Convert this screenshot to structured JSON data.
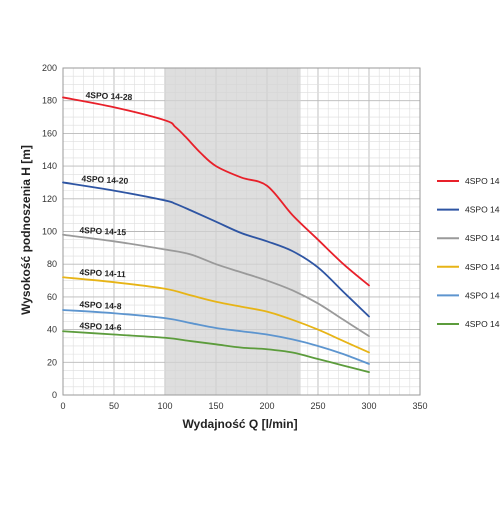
{
  "chart_data": {
    "type": "line",
    "title": "",
    "xlabel": "Wydajność Q [l/min]",
    "ylabel": "Wysokość podnoszenia H [m]",
    "xlim": [
      0,
      350
    ],
    "ylim": [
      0,
      200
    ],
    "xticks": [
      0,
      50,
      100,
      150,
      200,
      250,
      300,
      350
    ],
    "yticks": [
      0,
      20,
      40,
      60,
      80,
      100,
      120,
      140,
      160,
      180,
      200
    ],
    "grid": true,
    "legend_position": "right",
    "shaded_region": {
      "x_from": 100,
      "x_to": 233,
      "color": "#d3d3d3"
    },
    "series": [
      {
        "name": "4SPO 14-28",
        "color": "#e8202a",
        "x": [
          0,
          50,
          100,
          110,
          120,
          135,
          150,
          175,
          200,
          225,
          250,
          275,
          300
        ],
        "y": [
          182,
          176,
          168,
          164,
          158,
          148,
          140,
          133,
          128,
          110,
          95,
          80,
          67
        ]
      },
      {
        "name": "4SPO 14-20",
        "color": "#2e55a3",
        "x": [
          0,
          50,
          100,
          110,
          125,
          150,
          175,
          200,
          225,
          250,
          275,
          300
        ],
        "y": [
          130,
          125,
          119,
          117,
          113,
          106,
          99,
          94,
          88,
          78,
          63,
          48
        ]
      },
      {
        "name": "4SPO 14-15",
        "color": "#9a9a9a",
        "x": [
          0,
          50,
          100,
          125,
          150,
          175,
          200,
          225,
          250,
          275,
          300
        ],
        "y": [
          98,
          94,
          89,
          86,
          80,
          75,
          70,
          64,
          56,
          46,
          36
        ]
      },
      {
        "name": "4SPO 14-11",
        "color": "#e7b416",
        "x": [
          0,
          50,
          100,
          125,
          150,
          175,
          200,
          225,
          250,
          275,
          300
        ],
        "y": [
          72,
          69,
          65,
          61,
          57,
          54,
          51,
          46,
          40,
          33,
          26
        ]
      },
      {
        "name": "4SPO 14-8",
        "color": "#5d95cf",
        "x": [
          0,
          50,
          100,
          125,
          150,
          175,
          200,
          225,
          250,
          275,
          300
        ],
        "y": [
          52,
          50,
          47,
          44,
          41,
          39,
          37,
          34,
          30,
          25,
          19
        ]
      },
      {
        "name": "4SPO 14-6",
        "color": "#5c9c3c",
        "x": [
          0,
          50,
          100,
          125,
          150,
          175,
          200,
          225,
          250,
          275,
          300
        ],
        "y": [
          39,
          37,
          35,
          33,
          31,
          29,
          28,
          26,
          22,
          18,
          14
        ]
      }
    ]
  }
}
